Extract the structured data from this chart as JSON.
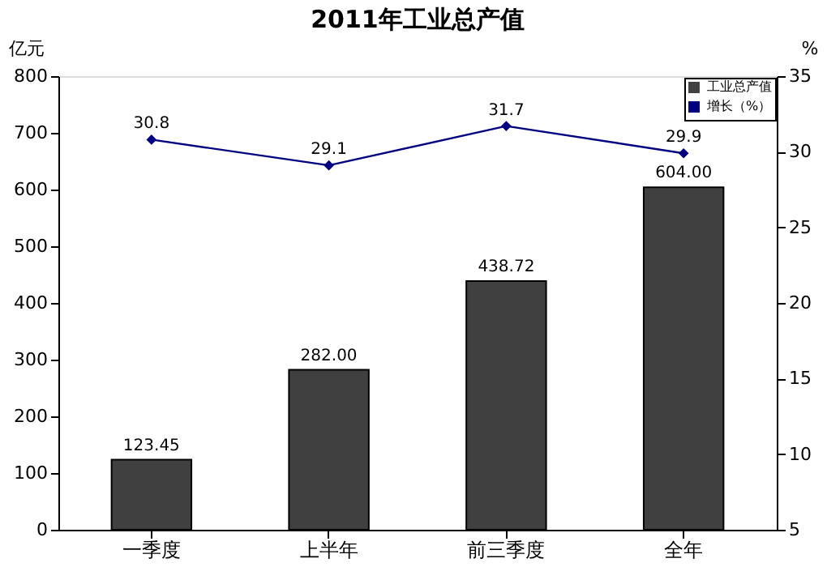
{
  "chart_data": {
    "type": "bar",
    "title": "2011年工业总产值",
    "ylabel": "亿元",
    "y2label": "%",
    "categories": [
      "一季度",
      "上半年",
      "前三季度",
      "全年"
    ],
    "series": [
      {
        "name": "工业总产值",
        "color": "#404040",
        "values": [
          123.45,
          282.0,
          438.72,
          604.0
        ],
        "value_labels": [
          "123.45",
          "282.00",
          "438.72",
          "604.00"
        ]
      },
      {
        "name": "增长（%）",
        "type": "line",
        "axis": "y2",
        "color": "#000080",
        "marker": "diamond",
        "values": [
          30.8,
          29.1,
          31.7,
          29.9
        ],
        "value_labels": [
          "30.8",
          "29.1",
          "31.7",
          "29.9"
        ]
      }
    ],
    "ylim": [
      0,
      800
    ],
    "yticks": [
      0,
      100,
      200,
      300,
      400,
      500,
      600,
      700,
      800
    ],
    "y2lim": [
      5,
      35
    ],
    "y2ticks": [
      5,
      10,
      15,
      20,
      25,
      30,
      35
    ],
    "grid": false,
    "legend": "top right"
  }
}
